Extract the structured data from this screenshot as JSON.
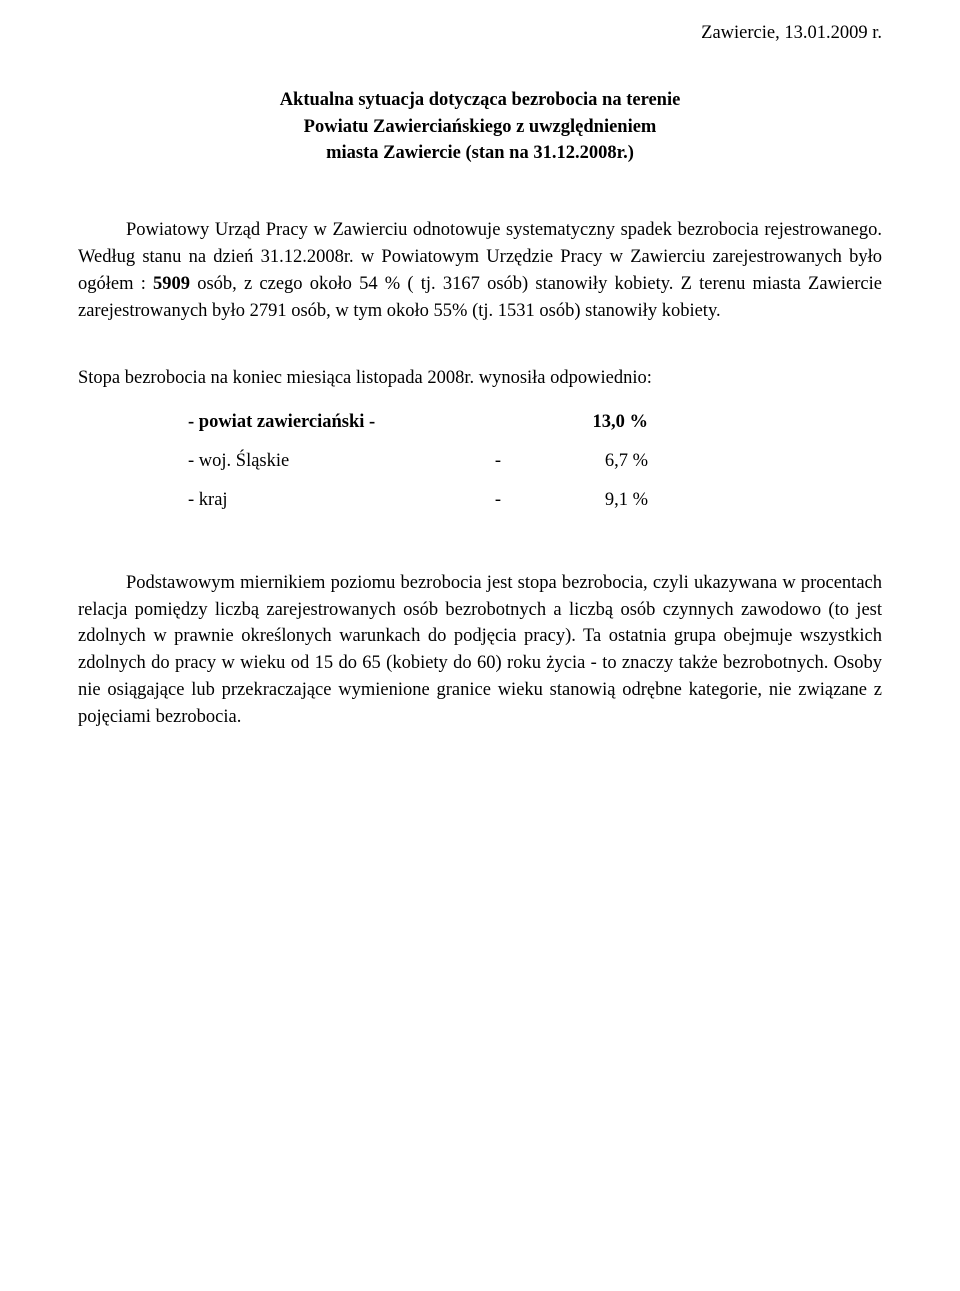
{
  "header": {
    "date": "Zawiercie, 13.01.2009 r."
  },
  "title": {
    "line1": "Aktualna sytuacja dotycząca bezrobocia na terenie",
    "line2": "Powiatu Zawierciańskiego  z uwzględnieniem",
    "line3": "miasta Zawiercie (stan na 31.12.2008r.)"
  },
  "p1": {
    "seg1": "Powiatowy Urząd Pracy w Zawierciu odnotowuje systematyczny spadek bezrobocia rejestrowanego. Według stanu na dzień 31.12.2008r. w Powiatowym Urzędzie Pracy w Zawierciu zarejestrowanych było ogółem : ",
    "bold1": "5909",
    "seg2": " osób, z czego około 54 % ( tj. 3167 osób) stanowiły kobiety. Z terenu miasta Zawiercie zarejestrowanych było 2791 osób, w tym około 55% (tj. 1531 osób) stanowiły kobiety."
  },
  "rates_intro": "Stopa bezrobocia na koniec miesiąca listopada 2008r. wynosiła odpowiednio:",
  "rates": [
    {
      "label": "- powiat zawierciański -",
      "dash": "",
      "value": "13,0 %",
      "bold": true
    },
    {
      "label": "- woj. Śląskie",
      "dash": "-",
      "value": "6,7 %",
      "bold": false
    },
    {
      "label": "- kraj",
      "dash": "-",
      "value": "9,1 %",
      "bold": false
    }
  ],
  "p2": {
    "text": "Podstawowym miernikiem poziomu bezrobocia jest stopa bezrobocia, czyli ukazywana w procentach relacja pomiędzy liczbą zarejestrowanych osób bezrobotnych a liczbą osób czynnych zawodowo (to jest zdolnych w prawnie określonych warunkach do podjęcia pracy). Ta ostatnia grupa obejmuje wszystkich zdolnych do pracy w wieku od 15 do 65 (kobiety do 60) roku życia - to znaczy także bezrobotnych. Osoby nie osiągające lub przekraczające wymienione granice wieku stanowią odrębne kategorie, nie związane z pojęciami bezrobocia."
  }
}
